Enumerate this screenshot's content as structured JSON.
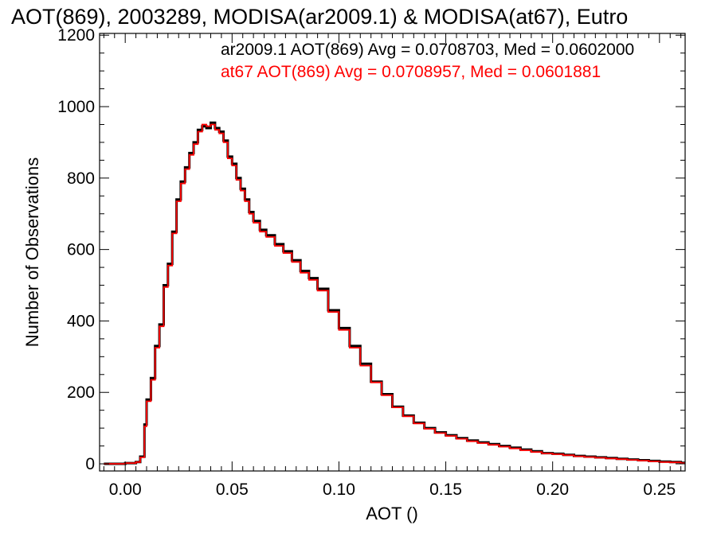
{
  "chart_data": {
    "type": "line",
    "title": "AOT(869), 2003289, MODISA(ar2009.1) & MODISA(at67), Eutro",
    "xlabel": "AOT ()",
    "ylabel": "Number of Observations",
    "xlim": [
      -0.012,
      0.262
    ],
    "ylim": [
      -20,
      1205
    ],
    "xticks": [
      0.0,
      0.05,
      0.1,
      0.15,
      0.2,
      0.25
    ],
    "xtick_labels": [
      "0.00",
      "0.05",
      "0.10",
      "0.15",
      "0.20",
      "0.25"
    ],
    "yticks": [
      0,
      200,
      400,
      600,
      800,
      1000,
      1200
    ],
    "ytick_labels": [
      "0",
      "200",
      "400",
      "600",
      "800",
      "1000",
      "1200"
    ],
    "grid": false,
    "step": true,
    "annotations": [
      {
        "text": "ar2009.1 AOT(869) Avg = 0.0708703, Med = 0.0602000",
        "color": "#000000"
      },
      {
        "text": "at67 AOT(869) Avg = 0.0708957, Med = 0.0601881",
        "color": "#ff0000"
      }
    ],
    "series": [
      {
        "color": "#000000",
        "x": [
          -0.01,
          -0.005,
          0.0,
          0.005,
          0.007,
          0.009,
          0.01,
          0.012,
          0.014,
          0.016,
          0.018,
          0.02,
          0.022,
          0.024,
          0.026,
          0.028,
          0.03,
          0.032,
          0.034,
          0.036,
          0.038,
          0.04,
          0.042,
          0.044,
          0.046,
          0.048,
          0.05,
          0.052,
          0.054,
          0.056,
          0.058,
          0.06,
          0.063,
          0.066,
          0.07,
          0.074,
          0.078,
          0.082,
          0.086,
          0.09,
          0.095,
          0.1,
          0.105,
          0.11,
          0.115,
          0.12,
          0.125,
          0.13,
          0.135,
          0.14,
          0.145,
          0.15,
          0.155,
          0.16,
          0.165,
          0.17,
          0.175,
          0.18,
          0.185,
          0.19,
          0.195,
          0.2,
          0.205,
          0.21,
          0.215,
          0.22,
          0.225,
          0.23,
          0.235,
          0.24,
          0.245,
          0.25,
          0.255,
          0.26
        ],
        "y": [
          0,
          0,
          2,
          5,
          20,
          110,
          180,
          240,
          330,
          390,
          500,
          560,
          650,
          740,
          790,
          830,
          870,
          900,
          935,
          945,
          940,
          955,
          940,
          930,
          905,
          860,
          840,
          800,
          770,
          740,
          705,
          680,
          655,
          640,
          615,
          595,
          570,
          540,
          520,
          490,
          430,
          380,
          330,
          280,
          230,
          195,
          160,
          135,
          115,
          100,
          88,
          80,
          72,
          65,
          60,
          55,
          50,
          45,
          40,
          35,
          30,
          28,
          25,
          22,
          20,
          18,
          16,
          14,
          12,
          10,
          8,
          6,
          5,
          3
        ]
      },
      {
        "color": "#ff0000",
        "x": [
          -0.01,
          -0.005,
          0.0,
          0.005,
          0.007,
          0.009,
          0.01,
          0.012,
          0.014,
          0.016,
          0.018,
          0.02,
          0.022,
          0.024,
          0.026,
          0.028,
          0.03,
          0.032,
          0.034,
          0.036,
          0.038,
          0.04,
          0.042,
          0.044,
          0.046,
          0.048,
          0.05,
          0.052,
          0.054,
          0.056,
          0.058,
          0.06,
          0.063,
          0.066,
          0.07,
          0.074,
          0.078,
          0.082,
          0.086,
          0.09,
          0.095,
          0.1,
          0.105,
          0.11,
          0.115,
          0.12,
          0.125,
          0.13,
          0.135,
          0.14,
          0.145,
          0.15,
          0.155,
          0.16,
          0.165,
          0.17,
          0.175,
          0.18,
          0.185,
          0.19,
          0.195,
          0.2,
          0.205,
          0.21,
          0.215,
          0.22,
          0.225,
          0.23,
          0.235,
          0.24,
          0.245,
          0.25,
          0.255,
          0.26
        ],
        "y": [
          0,
          0,
          2,
          5,
          18,
          105,
          175,
          235,
          325,
          385,
          495,
          555,
          645,
          735,
          785,
          825,
          865,
          895,
          930,
          950,
          945,
          950,
          935,
          925,
          900,
          855,
          835,
          795,
          765,
          735,
          700,
          675,
          650,
          635,
          610,
          590,
          565,
          535,
          515,
          485,
          425,
          375,
          325,
          275,
          228,
          192,
          158,
          133,
          113,
          98,
          86,
          78,
          70,
          63,
          58,
          53,
          48,
          43,
          38,
          33,
          29,
          27,
          24,
          21,
          19,
          17,
          15,
          13,
          11,
          9,
          7,
          5,
          4,
          2
        ]
      }
    ]
  }
}
